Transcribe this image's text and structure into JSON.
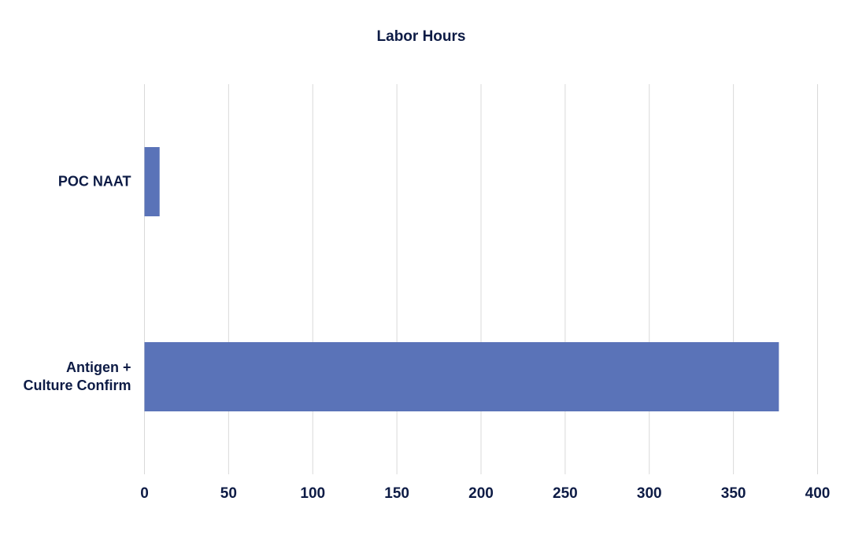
{
  "chart_data": {
    "type": "hbar",
    "title": "Labor Hours",
    "categories": [
      "POC NAAT",
      "Antigen + Culture Confirm"
    ],
    "values": [
      9,
      377
    ],
    "color": "#5a73b8",
    "xlim": [
      0,
      400
    ],
    "xticks": [
      0,
      50,
      100,
      150,
      200,
      250,
      300,
      350,
      400
    ],
    "grid": true
  }
}
